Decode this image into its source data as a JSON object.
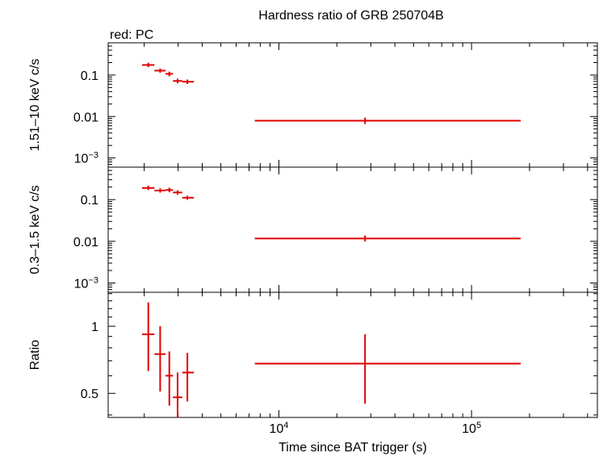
{
  "chart_data": {
    "type": "scatter",
    "title": "Hardness ratio of GRB 250704B",
    "subtitle": "red: PC",
    "xlabel": "Time since BAT trigger (s)",
    "xscale": "log",
    "xlim": [
      1300,
      450000
    ],
    "xticks": [
      {
        "value": 10000,
        "base": "10",
        "exp": "4"
      },
      {
        "value": 100000,
        "base": "10",
        "exp": "5"
      }
    ],
    "panels": [
      {
        "ylabel": "1.51–10 keV c/s",
        "yscale": "log",
        "ylim": [
          0.0006,
          0.6
        ],
        "yticks": [
          {
            "value": 0.1,
            "label": "0.1"
          },
          {
            "value": 0.01,
            "label": "0.01"
          },
          {
            "value": 0.001,
            "base": "10",
            "exp": "−3"
          }
        ],
        "series": [
          {
            "color": "#e00000",
            "points": [
              {
                "x": 2100,
                "xlo": 1950,
                "xhi": 2260,
                "y": 0.175,
                "ylo": 0.155,
                "yhi": 0.197
              },
              {
                "x": 2420,
                "xlo": 2260,
                "xhi": 2580,
                "y": 0.128,
                "ylo": 0.114,
                "yhi": 0.144
              },
              {
                "x": 2700,
                "xlo": 2580,
                "xhi": 2820,
                "y": 0.107,
                "ylo": 0.093,
                "yhi": 0.121
              },
              {
                "x": 2980,
                "xlo": 2820,
                "xhi": 3150,
                "y": 0.072,
                "ylo": 0.063,
                "yhi": 0.082
              },
              {
                "x": 3350,
                "xlo": 3150,
                "xhi": 3620,
                "y": 0.069,
                "ylo": 0.061,
                "yhi": 0.078
              },
              {
                "x": 28000,
                "xlo": 7500,
                "xhi": 180000,
                "y": 0.0079,
                "ylo": 0.0066,
                "yhi": 0.0094
              }
            ]
          }
        ]
      },
      {
        "ylabel": "0.3–1.5 keV c/s",
        "yscale": "log",
        "ylim": [
          0.0006,
          0.6
        ],
        "yticks": [
          {
            "value": 0.1,
            "label": "0.1"
          },
          {
            "value": 0.01,
            "label": "0.01"
          },
          {
            "value": 0.001,
            "base": "10",
            "exp": "−3"
          }
        ],
        "series": [
          {
            "color": "#e00000",
            "points": [
              {
                "x": 2100,
                "xlo": 1950,
                "xhi": 2260,
                "y": 0.19,
                "ylo": 0.17,
                "yhi": 0.215
              },
              {
                "x": 2420,
                "xlo": 2260,
                "xhi": 2580,
                "y": 0.165,
                "ylo": 0.147,
                "yhi": 0.186
              },
              {
                "x": 2700,
                "xlo": 2580,
                "xhi": 2820,
                "y": 0.17,
                "ylo": 0.15,
                "yhi": 0.193
              },
              {
                "x": 2980,
                "xlo": 2820,
                "xhi": 3150,
                "y": 0.148,
                "ylo": 0.131,
                "yhi": 0.167
              },
              {
                "x": 3350,
                "xlo": 3150,
                "xhi": 3620,
                "y": 0.111,
                "ylo": 0.099,
                "yhi": 0.124
              },
              {
                "x": 28000,
                "xlo": 7500,
                "xhi": 180000,
                "y": 0.0117,
                "ylo": 0.0099,
                "yhi": 0.0138
              }
            ]
          }
        ]
      },
      {
        "ylabel": "Ratio",
        "yscale": "log",
        "ylim": [
          0.39,
          1.42
        ],
        "yticks": [
          {
            "value": 1,
            "label": "1"
          },
          {
            "value": 0.5,
            "label": "0.5"
          }
        ],
        "series": [
          {
            "color": "#e00000",
            "points": [
              {
                "x": 2100,
                "xlo": 1950,
                "xhi": 2260,
                "y": 0.92,
                "ylo": 0.63,
                "yhi": 1.28
              },
              {
                "x": 2420,
                "xlo": 2260,
                "xhi": 2580,
                "y": 0.75,
                "ylo": 0.51,
                "yhi": 1.0
              },
              {
                "x": 2700,
                "xlo": 2580,
                "xhi": 2820,
                "y": 0.6,
                "ylo": 0.44,
                "yhi": 0.77
              },
              {
                "x": 2980,
                "xlo": 2820,
                "xhi": 3150,
                "y": 0.48,
                "ylo": 0.39,
                "yhi": 0.62
              },
              {
                "x": 3350,
                "xlo": 3150,
                "xhi": 3620,
                "y": 0.62,
                "ylo": 0.46,
                "yhi": 0.76
              },
              {
                "x": 28000,
                "xlo": 7500,
                "xhi": 180000,
                "y": 0.68,
                "ylo": 0.45,
                "yhi": 0.92
              }
            ]
          }
        ]
      }
    ]
  }
}
